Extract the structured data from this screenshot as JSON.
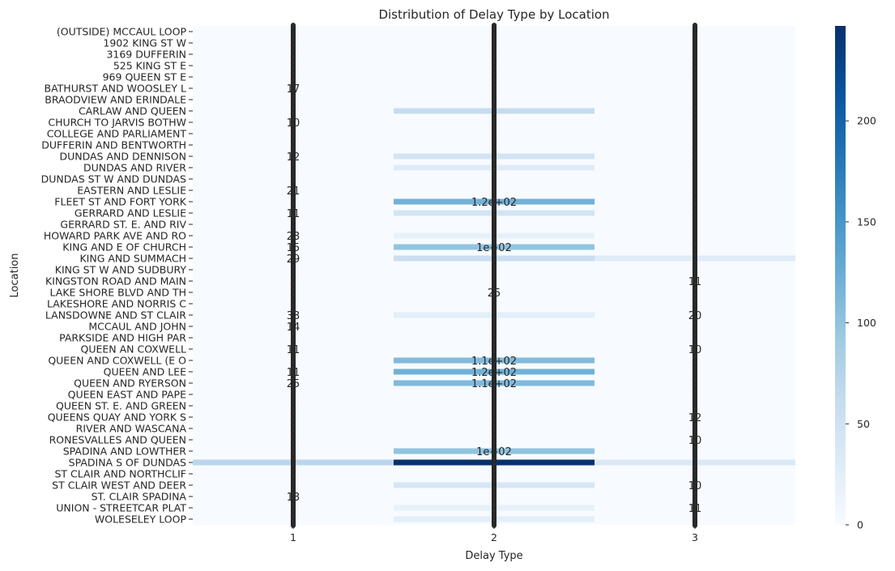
{
  "chart_data": {
    "type": "heatmap",
    "title": "Distribution of Delay Type by Location",
    "xlabel": "Delay Type",
    "ylabel": "Location",
    "x_categories": [
      "1",
      "2",
      "3"
    ],
    "y_tick_labels": [
      "(OUTSIDE) MCCAUL LOOP",
      "1902 KING ST W",
      "3169 DUFFERIN",
      "525 KING ST E",
      "969 QUEEN ST E",
      "BATHURST AND WOOSLEY L",
      "BRAODVIEW AND ERINDALE",
      "CARLAW AND QUEEN",
      "CHURCH TO JARVIS BOTHW",
      "COLLEGE AND PARLIAMENT",
      "DUFFERIN AND BENTWORTH",
      "DUNDAS AND DENNISON",
      "DUNDAS AND RIVER",
      "DUNDAS ST W AND DUNDAS",
      "EASTERN AND LESLIE",
      "FLEET ST AND FORT YORK",
      "GERRARD AND LESLIE",
      "GERRARD ST. E. AND RIV",
      "HOWARD PARK AVE AND RO",
      "KING AND E OF CHURCH",
      "KING AND SUMMACH",
      "KING ST W AND SUDBURY",
      "KINGSTON ROAD AND MAIN",
      "LAKE SHORE BLVD AND TH",
      "LAKESHORE AND NORRIS C",
      "LANSDOWNE AND ST CLAIR",
      "MCCAUL AND JOHN",
      "PARKSIDE AND HIGH PAR",
      "QUEEN AN COXWELL",
      "QUEEN AND COXWELL (E O",
      "QUEEN AND LEE",
      "QUEEN AND RYERSON",
      "QUEEN EAST AND PAPE",
      "QUEEN ST. E. AND GREEN",
      "QUEENS QUAY AND YORK S",
      "RIVER AND WASCANA",
      "RONESVALLES AND QUEEN",
      "SPADINA AND LOWTHER",
      "SPADINA S OF DUNDAS",
      "ST CLAIR AND NORTHCLIF",
      "ST CLAIR WEST AND DEER",
      "ST. CLAIR SPADINA",
      "UNION - STREETCAR PLAT",
      "WOLESELEY LOOP"
    ],
    "colorbar": {
      "min": 0,
      "max": 247,
      "ticks": [
        0,
        50,
        100,
        150,
        200
      ]
    },
    "colormap": "Blues",
    "visible_annotations": [
      {
        "location": "BATHURST AND WOOSLEY L",
        "delay_type": "1",
        "text": "17"
      },
      {
        "location": "CHURCH TO JARVIS BOTHW",
        "delay_type": "1",
        "text": "10"
      },
      {
        "location": "DUNDAS AND DENNISON",
        "delay_type": "1",
        "text": "12"
      },
      {
        "location": "EASTERN AND LESLIE",
        "delay_type": "1",
        "text": "21"
      },
      {
        "location": "FLEET ST AND FORT YORK",
        "delay_type": "2",
        "text": "1.2e+02"
      },
      {
        "location": "GERRARD AND LESLIE",
        "delay_type": "1",
        "text": "11"
      },
      {
        "location": "HOWARD PARK AVE AND RO",
        "delay_type": "1",
        "text": "23"
      },
      {
        "location": "KING AND E OF CHURCH",
        "delay_type": "1",
        "text": "15"
      },
      {
        "location": "KING AND E OF CHURCH",
        "delay_type": "2",
        "text": "1e+02"
      },
      {
        "location": "KING AND SUMMACH",
        "delay_type": "1",
        "text": "29"
      },
      {
        "location": "KINGSTON ROAD AND MAIN",
        "delay_type": "3",
        "text": "11"
      },
      {
        "location": "LAKE SHORE BLVD AND TH",
        "delay_type": "2",
        "text": "25"
      },
      {
        "location": "LANSDOWNE AND ST CLAIR",
        "delay_type": "1",
        "text": "33"
      },
      {
        "location": "LANSDOWNE AND ST CLAIR",
        "delay_type": "3",
        "text": "20"
      },
      {
        "location": "MCCAUL AND JOHN",
        "delay_type": "1",
        "text": "14"
      },
      {
        "location": "QUEEN AN COXWELL",
        "delay_type": "1",
        "text": "11"
      },
      {
        "location": "QUEEN AN COXWELL",
        "delay_type": "3",
        "text": "10"
      },
      {
        "location": "QUEEN AND COXWELL (E O",
        "delay_type": "2",
        "text": "1.1e+02"
      },
      {
        "location": "QUEEN AND LEE",
        "delay_type": "1",
        "text": "11"
      },
      {
        "location": "QUEEN AND LEE",
        "delay_type": "2",
        "text": "1.2e+02"
      },
      {
        "location": "QUEEN AND RYERSON",
        "delay_type": "1",
        "text": "25"
      },
      {
        "location": "QUEEN AND RYERSON",
        "delay_type": "2",
        "text": "1.1e+02"
      },
      {
        "location": "QUEENS QUAY AND YORK S",
        "delay_type": "3",
        "text": "12"
      },
      {
        "location": "RONESVALLES AND QUEEN",
        "delay_type": "3",
        "text": "10"
      },
      {
        "location": "SPADINA AND LOWTHER",
        "delay_type": "2",
        "text": "1e+02"
      },
      {
        "location": "ST CLAIR WEST AND DEER",
        "delay_type": "3",
        "text": "10"
      },
      {
        "location": "ST. CLAIR SPADINA",
        "delay_type": "1",
        "text": "13"
      },
      {
        "location": "UNION - STREETCAR PLAT",
        "delay_type": "3",
        "text": "11"
      }
    ],
    "highlighted_cells": [
      {
        "location": "CARLAW AND QUEEN",
        "delay_type": "2",
        "value": 60
      },
      {
        "location": "DUNDAS AND DENNISON",
        "delay_type": "2",
        "value": 45
      },
      {
        "location": "DUNDAS AND RIVER",
        "delay_type": "2",
        "value": 30
      },
      {
        "location": "FLEET ST AND FORT YORK",
        "delay_type": "2",
        "value": 120
      },
      {
        "location": "GERRARD AND LESLIE",
        "delay_type": "2",
        "value": 45
      },
      {
        "location": "HOWARD PARK AVE AND RO",
        "delay_type": "2",
        "value": 20
      },
      {
        "location": "KING AND E OF CHURCH",
        "delay_type": "2",
        "value": 100
      },
      {
        "location": "KING AND SUMMACH",
        "delay_type": "2",
        "value": 55
      },
      {
        "location": "KING AND SUMMACH",
        "delay_type": "3",
        "value": 30
      },
      {
        "location": "LANSDOWNE AND ST CLAIR",
        "delay_type": "2",
        "value": 25
      },
      {
        "location": "QUEEN AND COXWELL (E O",
        "delay_type": "2",
        "value": 110
      },
      {
        "location": "QUEEN AND LEE",
        "delay_type": "2",
        "value": 120
      },
      {
        "location": "QUEEN AND RYERSON",
        "delay_type": "2",
        "value": 110
      },
      {
        "location": "SPADINA AND LOWTHER",
        "delay_type": "2",
        "value": 100
      },
      {
        "location": "SPADINA S OF DUNDAS",
        "delay_type": "1",
        "value": 70
      },
      {
        "location": "SPADINA S OF DUNDAS",
        "delay_type": "2",
        "value": 247
      },
      {
        "location": "SPADINA S OF DUNDAS",
        "delay_type": "3",
        "value": 35
      },
      {
        "location": "ST CLAIR WEST AND DEER",
        "delay_type": "2",
        "value": 40
      },
      {
        "location": "UNION - STREETCAR PLAT",
        "delay_type": "2",
        "value": 20
      },
      {
        "location": "WOLESELEY LOOP",
        "delay_type": "2",
        "value": 25
      }
    ]
  }
}
